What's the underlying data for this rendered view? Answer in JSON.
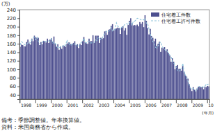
{
  "chart_data": {
    "type": "bar",
    "y_label": "(万)",
    "x_label": "(年月)",
    "notes": [
      "備考：季節調整値。年率換算値。",
      "資料：米国商務省から作成。"
    ],
    "categories": [
      "1998",
      null,
      null,
      null,
      null,
      null,
      null,
      null,
      null,
      null,
      null,
      null,
      "1999",
      null,
      null,
      null,
      null,
      null,
      null,
      null,
      null,
      null,
      null,
      null,
      "2000",
      null,
      null,
      null,
      null,
      null,
      null,
      null,
      null,
      null,
      null,
      null,
      "2001",
      null,
      null,
      null,
      null,
      null,
      null,
      null,
      null,
      null,
      null,
      null,
      "2002",
      null,
      null,
      null,
      null,
      null,
      null,
      null,
      null,
      null,
      null,
      null,
      "2003",
      null,
      null,
      null,
      null,
      null,
      null,
      null,
      null,
      null,
      null,
      null,
      "2004",
      null,
      null,
      null,
      null,
      null,
      null,
      null,
      null,
      null,
      null,
      null,
      "2005",
      null,
      null,
      null,
      null,
      null,
      null,
      null,
      null,
      null,
      null,
      null,
      "2006",
      null,
      null,
      null,
      null,
      null,
      null,
      null,
      null,
      null,
      null,
      null,
      "2007",
      null,
      null,
      null,
      null,
      null,
      null,
      null,
      null,
      null,
      null,
      null,
      "2008",
      null,
      null,
      null,
      null,
      null,
      null,
      null,
      null,
      null,
      null,
      null,
      "2009",
      null,
      null,
      null,
      null,
      null,
      null,
      null,
      null,
      null,
      null,
      null,
      "10",
      null
    ],
    "series": [
      {
        "name": "住宅着工件数",
        "type": "bar",
        "color": "#4d4f8f",
        "values": [
          153,
          158,
          157,
          154,
          154,
          164,
          170,
          161,
          158,
          172,
          166,
          179,
          175,
          174,
          174,
          157,
          164,
          159,
          167,
          166,
          163,
          172,
          162,
          170,
          173,
          165,
          177,
          160,
          153,
          159,
          146,
          154,
          148,
          156,
          155,
          153,
          160,
          163,
          163,
          159,
          160,
          162,
          166,
          157,
          159,
          150,
          160,
          157,
          166,
          176,
          164,
          161,
          160,
          172,
          166,
          166,
          180,
          162,
          179,
          179,
          179,
          162,
          174,
          172,
          173,
          189,
          190,
          181,
          193,
          194,
          202,
          206,
          191,
          195,
          196,
          198,
          197,
          183,
          198,
          201,
          191,
          197,
          181,
          204,
          214,
          220,
          208,
          203,
          204,
          203,
          205,
          201,
          211,
          207,
          211,
          199,
          227,
          214,
          197,
          182,
          195,
          178,
          174,
          166,
          172,
          155,
          160,
          165,
          141,
          151,
          149,
          152,
          143,
          147,
          138,
          133,
          118,
          126,
          118,
          100,
          108,
          110,
          101,
          101,
          97,
          108,
          94,
          86,
          83,
          78,
          65,
          56,
          49,
          58,
          52,
          48,
          55,
          59,
          59,
          58,
          58,
          53,
          59,
          58,
          61,
          60
        ]
      },
      {
        "name": "住宅着工許可件数",
        "type": "line",
        "line_style": "dashed",
        "color": "#8fc3dc",
        "values": [
          157,
          165,
          163,
          159,
          157,
          158,
          162,
          164,
          162,
          170,
          173,
          176,
          170,
          175,
          165,
          160,
          159,
          163,
          166,
          166,
          165,
          166,
          167,
          166,
          172,
          160,
          164,
          161,
          155,
          151,
          150,
          153,
          152,
          155,
          158,
          156,
          169,
          163,
          158,
          156,
          160,
          160,
          159,
          160,
          154,
          154,
          160,
          163,
          166,
          173,
          163,
          162,
          166,
          166,
          162,
          162,
          163,
          163,
          169,
          167,
          175,
          173,
          170,
          172,
          180,
          183,
          188,
          190,
          189,
          195,
          198,
          190,
          192,
          195,
          209,
          201,
          200,
          194,
          199,
          199,
          204,
          207,
          207,
          205,
          210,
          210,
          204,
          213,
          213,
          216,
          220,
          219,
          218,
          216,
          217,
          216,
          220,
          208,
          208,
          195,
          184,
          172,
          165,
          161,
          152,
          150,
          155,
          161,
          164,
          155,
          150,
          147,
          144,
          143,
          138,
          133,
          130,
          118,
          116,
          108,
          105,
          97,
          95,
          98,
          98,
          114,
          94,
          86,
          80,
          72,
          62,
          55,
          53,
          55,
          54,
          49,
          53,
          59,
          60,
          58,
          59,
          58,
          60,
          66,
          64,
          66
        ]
      }
    ],
    "ylim": [
      30,
      240
    ],
    "yticks": [
      40,
      60,
      80,
      100,
      120,
      140,
      160,
      180,
      200,
      220,
      240
    ],
    "legend": "upper right",
    "grid": false
  }
}
